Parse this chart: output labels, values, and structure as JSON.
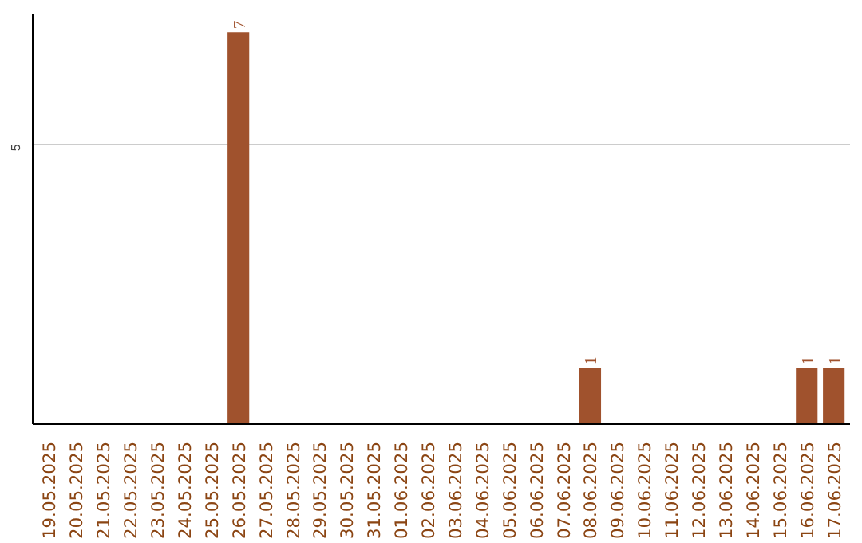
{
  "chart_data": {
    "type": "bar",
    "categories": [
      "19.05.2025",
      "20.05.2025",
      "21.05.2025",
      "22.05.2025",
      "23.05.2025",
      "24.05.2025",
      "25.05.2025",
      "26.05.2025",
      "27.05.2025",
      "28.05.2025",
      "29.05.2025",
      "30.05.2025",
      "31.05.2025",
      "01.06.2025",
      "02.06.2025",
      "03.06.2025",
      "04.06.2025",
      "05.06.2025",
      "06.06.2025",
      "07.06.2025",
      "08.06.2025",
      "09.06.2025",
      "10.06.2025",
      "11.06.2025",
      "12.06.2025",
      "13.06.2025",
      "14.06.2025",
      "15.06.2025",
      "16.06.2025",
      "17.06.2025"
    ],
    "values": [
      0,
      0,
      0,
      0,
      0,
      0,
      0,
      7,
      0,
      0,
      0,
      0,
      0,
      0,
      0,
      0,
      0,
      0,
      0,
      0,
      1,
      0,
      0,
      0,
      0,
      0,
      0,
      0,
      1,
      1
    ],
    "value_labels": [
      null,
      null,
      null,
      null,
      null,
      null,
      null,
      "7",
      null,
      null,
      null,
      null,
      null,
      null,
      null,
      null,
      null,
      null,
      null,
      null,
      "1",
      null,
      null,
      null,
      null,
      null,
      null,
      null,
      "1",
      "1"
    ],
    "color": "#a0522d",
    "ylim": [
      0,
      7.33
    ],
    "yticks": [
      5
    ],
    "grid": "y"
  }
}
